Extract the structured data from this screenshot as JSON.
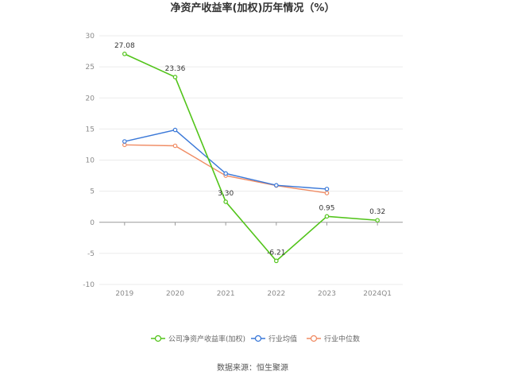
{
  "chart_data": {
    "type": "line",
    "title": "净资产收益率(加权)历年情况（%）",
    "categories": [
      "2019",
      "2020",
      "2021",
      "2022",
      "2023",
      "2024Q1"
    ],
    "ylim": [
      -10,
      30
    ],
    "yticks": [
      30,
      25,
      20,
      15,
      10,
      5,
      0,
      -5,
      -10
    ],
    "grid": true,
    "legend_position": "bottom",
    "series": [
      {
        "name": "公司净资产收益率(加权)",
        "color": "#52c41a",
        "values": [
          27.08,
          23.36,
          3.3,
          -6.21,
          0.95,
          0.32
        ],
        "labels": [
          "27.08",
          "23.36",
          "3.30",
          "-6.21",
          "0.95",
          "0.32"
        ]
      },
      {
        "name": "行业均值",
        "color": "#3a78d8",
        "values": [
          13.0,
          14.85,
          7.85,
          5.95,
          5.35,
          null
        ]
      },
      {
        "name": "行业中位数",
        "color": "#f08c64",
        "values": [
          12.45,
          12.3,
          7.5,
          5.9,
          4.7,
          null
        ]
      }
    ]
  },
  "source": "数据来源：恒生聚源"
}
